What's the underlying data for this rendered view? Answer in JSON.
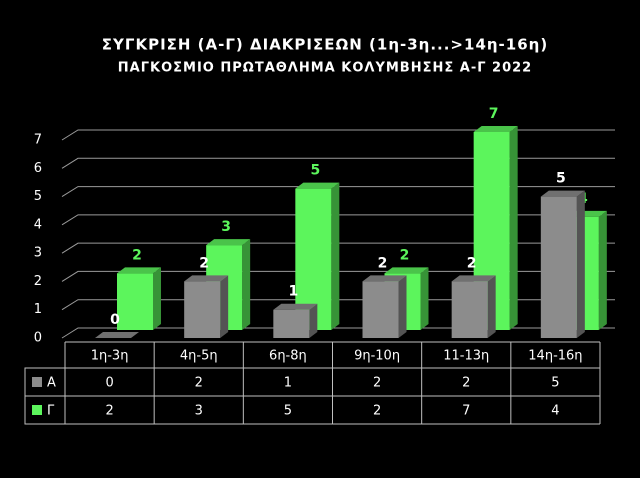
{
  "chart_data": {
    "type": "bar3d",
    "title": "ΣΥΓΚΡΙΣΗ (Α-Γ) ΔΙΑΚΡΙΣΕΩΝ (1η-3η...>14η-16η)",
    "subtitle": "ΠΑΓΚΟΣΜΙΟ ΠΡΩΤΑΘΛΗΜΑ ΚΟΛΥΜΒΗΣΗΣ Α-Γ 2022",
    "categories": [
      "1η-3η",
      "4η-5η",
      "6η-8η",
      "9η-10η",
      "11-13η",
      "14η-16η"
    ],
    "series": [
      {
        "name": "Α",
        "color": "#8c8c8c",
        "values": [
          0,
          2,
          1,
          2,
          2,
          5
        ]
      },
      {
        "name": "Γ",
        "color": "#5cf55c",
        "values": [
          2,
          3,
          5,
          2,
          7,
          4
        ]
      }
    ],
    "ylim": [
      0,
      7
    ],
    "yticks": [
      0,
      1,
      2,
      3,
      4,
      5,
      6,
      7
    ],
    "grid": true
  }
}
